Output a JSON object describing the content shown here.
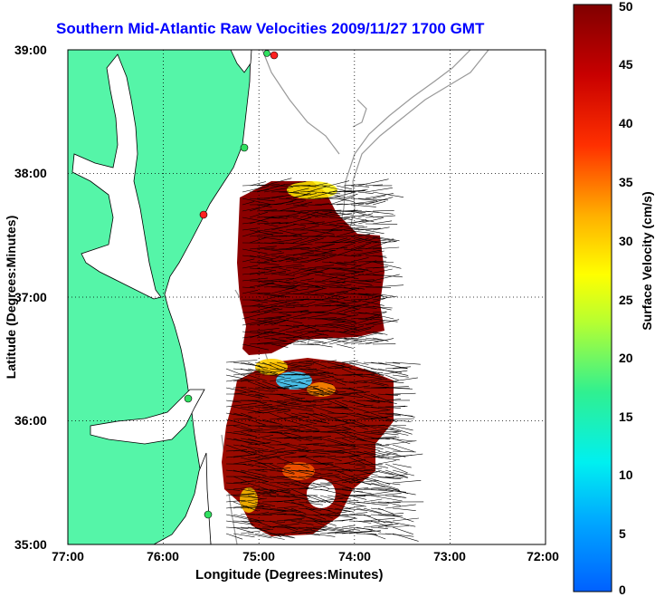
{
  "title": "Southern Mid-Atlantic Raw Velocities 2009/11/27 1700 GMT",
  "axes": {
    "xlabel": "Longitude (Degrees:Minutes)",
    "ylabel": "Latitude (Degrees:Minutes)",
    "x_ticks": [
      "77:00",
      "76:00",
      "75:00",
      "74:00",
      "73:00",
      "72:00"
    ],
    "y_ticks": [
      "39:00",
      "38:00",
      "37:00",
      "36:00",
      "35:00"
    ]
  },
  "colorbar": {
    "label": "Surface Velocity (cm/s)",
    "ticks": [
      "50",
      "45",
      "40",
      "35",
      "30",
      "25",
      "20",
      "15",
      "10",
      "5",
      "0"
    ],
    "range": [
      0,
      50
    ]
  },
  "colors": {
    "land": "#55f5a8",
    "water": "#ffffff",
    "title": "#0000ff",
    "velocity_high": "#8b0000",
    "arrows": "#000000",
    "bathymetry": "#999999"
  }
}
